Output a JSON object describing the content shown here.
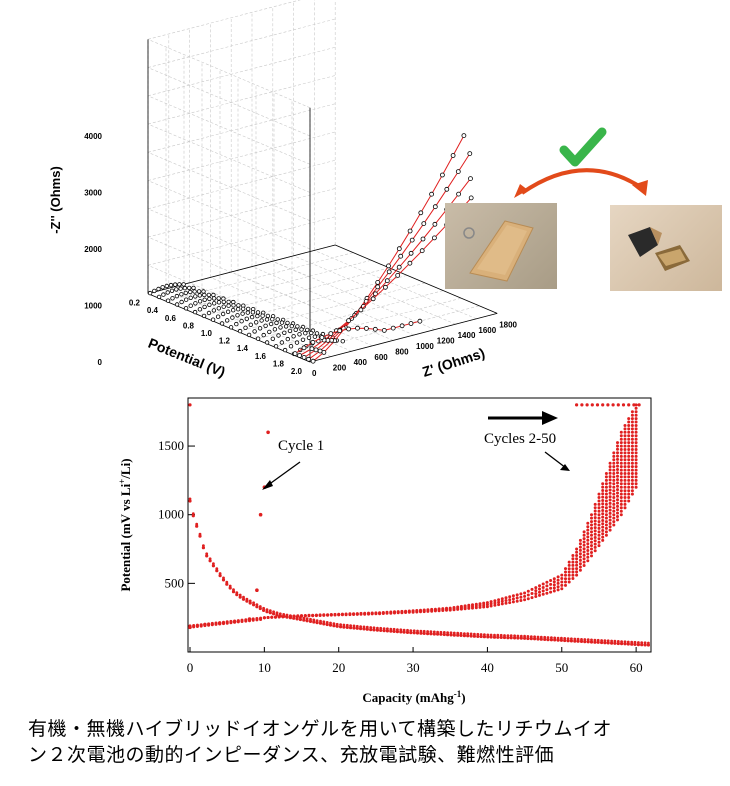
{
  "chart_data": [
    {
      "type": "line",
      "subtype": "3d-impedance (Nyquist vs potential)",
      "zlabel": "-Z'' (Ohms)",
      "xlabel": "Z' (Ohms)",
      "ylabel": "Potential (V)",
      "z_ticks": [
        "0",
        "1000",
        "2000",
        "3000",
        "4000"
      ],
      "x_ticks": [
        "0",
        "200",
        "400",
        "600",
        "800",
        "1000",
        "1200",
        "1400",
        "1600",
        "1800"
      ],
      "y_ticks": [
        "0.2",
        "0.4",
        "0.6",
        "0.8",
        "1.0",
        "1.2",
        "1.4",
        "1.6",
        "1.8",
        "2.0"
      ],
      "grid": true,
      "series": [
        {
          "potential": 2.0,
          "max_zreal": 1450,
          "max_zimag": 3300
        },
        {
          "potential": 1.95,
          "max_zreal": 1550,
          "max_zimag": 2900
        },
        {
          "potential": 1.9,
          "max_zreal": 1600,
          "max_zimag": 2400
        },
        {
          "potential": 1.85,
          "max_zreal": 1650,
          "max_zimag": 2000
        },
        {
          "potential": 1.8,
          "max_zreal": 1200,
          "max_zimag": 200
        }
      ],
      "colors": {
        "fit_line": "#e02020",
        "markers": "#000000"
      }
    },
    {
      "type": "scatter",
      "xlabel": "Capacity (mAhg",
      "xlabel_sup": "-1",
      "xlabel_end": ")",
      "ylabel": "Potential (mV vs Li",
      "ylabel_sup": "+",
      "ylabel_end": "/Li)",
      "xlim": [
        0,
        62
      ],
      "ylim": [
        0,
        1850
      ],
      "x_ticks": [
        0,
        10,
        20,
        30,
        40,
        50,
        60
      ],
      "y_ticks": [
        500,
        1000,
        1500
      ],
      "annotations": [
        {
          "text": "Cycle 1"
        },
        {
          "text": "Cycles 2-50"
        }
      ],
      "series": [
        {
          "role": "cycle-1-discharge",
          "x": [
            0,
            0.5,
            1,
            1.5,
            2,
            3,
            4,
            5,
            6,
            7,
            8,
            9,
            10,
            12,
            14,
            16,
            18,
            20,
            25,
            30,
            35,
            40,
            45,
            50,
            55,
            60,
            62
          ],
          "y": [
            1100,
            980,
            900,
            820,
            720,
            640,
            560,
            490,
            430,
            390,
            360,
            330,
            300,
            265,
            245,
            225,
            205,
            185,
            160,
            140,
            125,
            110,
            100,
            85,
            70,
            55,
            50
          ]
        },
        {
          "role": "cycle-1-charge",
          "x": [
            0,
            2,
            4,
            6,
            8,
            9,
            9.5,
            10,
            10.5
          ],
          "y": [
            180,
            200,
            210,
            220,
            240,
            450,
            1000,
            1200,
            1600
          ]
        },
        {
          "role": "cycles-2-50-charge-envelope",
          "x": [
            0,
            5,
            10,
            15,
            20,
            25,
            30,
            35,
            40,
            45,
            50,
            52,
            54,
            56,
            58,
            60
          ],
          "y": [
            190,
            220,
            250,
            265,
            275,
            285,
            300,
            320,
            360,
            430,
            560,
            750,
            1000,
            1300,
            1600,
            1800
          ]
        },
        {
          "role": "cycles-2-50-charge-envelope-low",
          "x": [
            10,
            15,
            20,
            25,
            30,
            35,
            40,
            45,
            50,
            52,
            54,
            56,
            58,
            60
          ],
          "y": [
            250,
            262,
            270,
            278,
            290,
            305,
            330,
            380,
            460,
            560,
            700,
            850,
            1000,
            1200
          ]
        }
      ],
      "colors": {
        "points": "#e02020"
      }
    }
  ],
  "images": {
    "left_photo": "gel-film-photo",
    "right_photo": "burned-sample-photo",
    "check_icon": "check-icon",
    "arrow": "curved-arrow"
  },
  "caption": {
    "line1": "有機・無機ハイブリッドイオンゲルを用いて構築したリチウムイオ",
    "line2": "ン２次電池の動的インピーダンス、充放電試験、難燃性評価"
  }
}
